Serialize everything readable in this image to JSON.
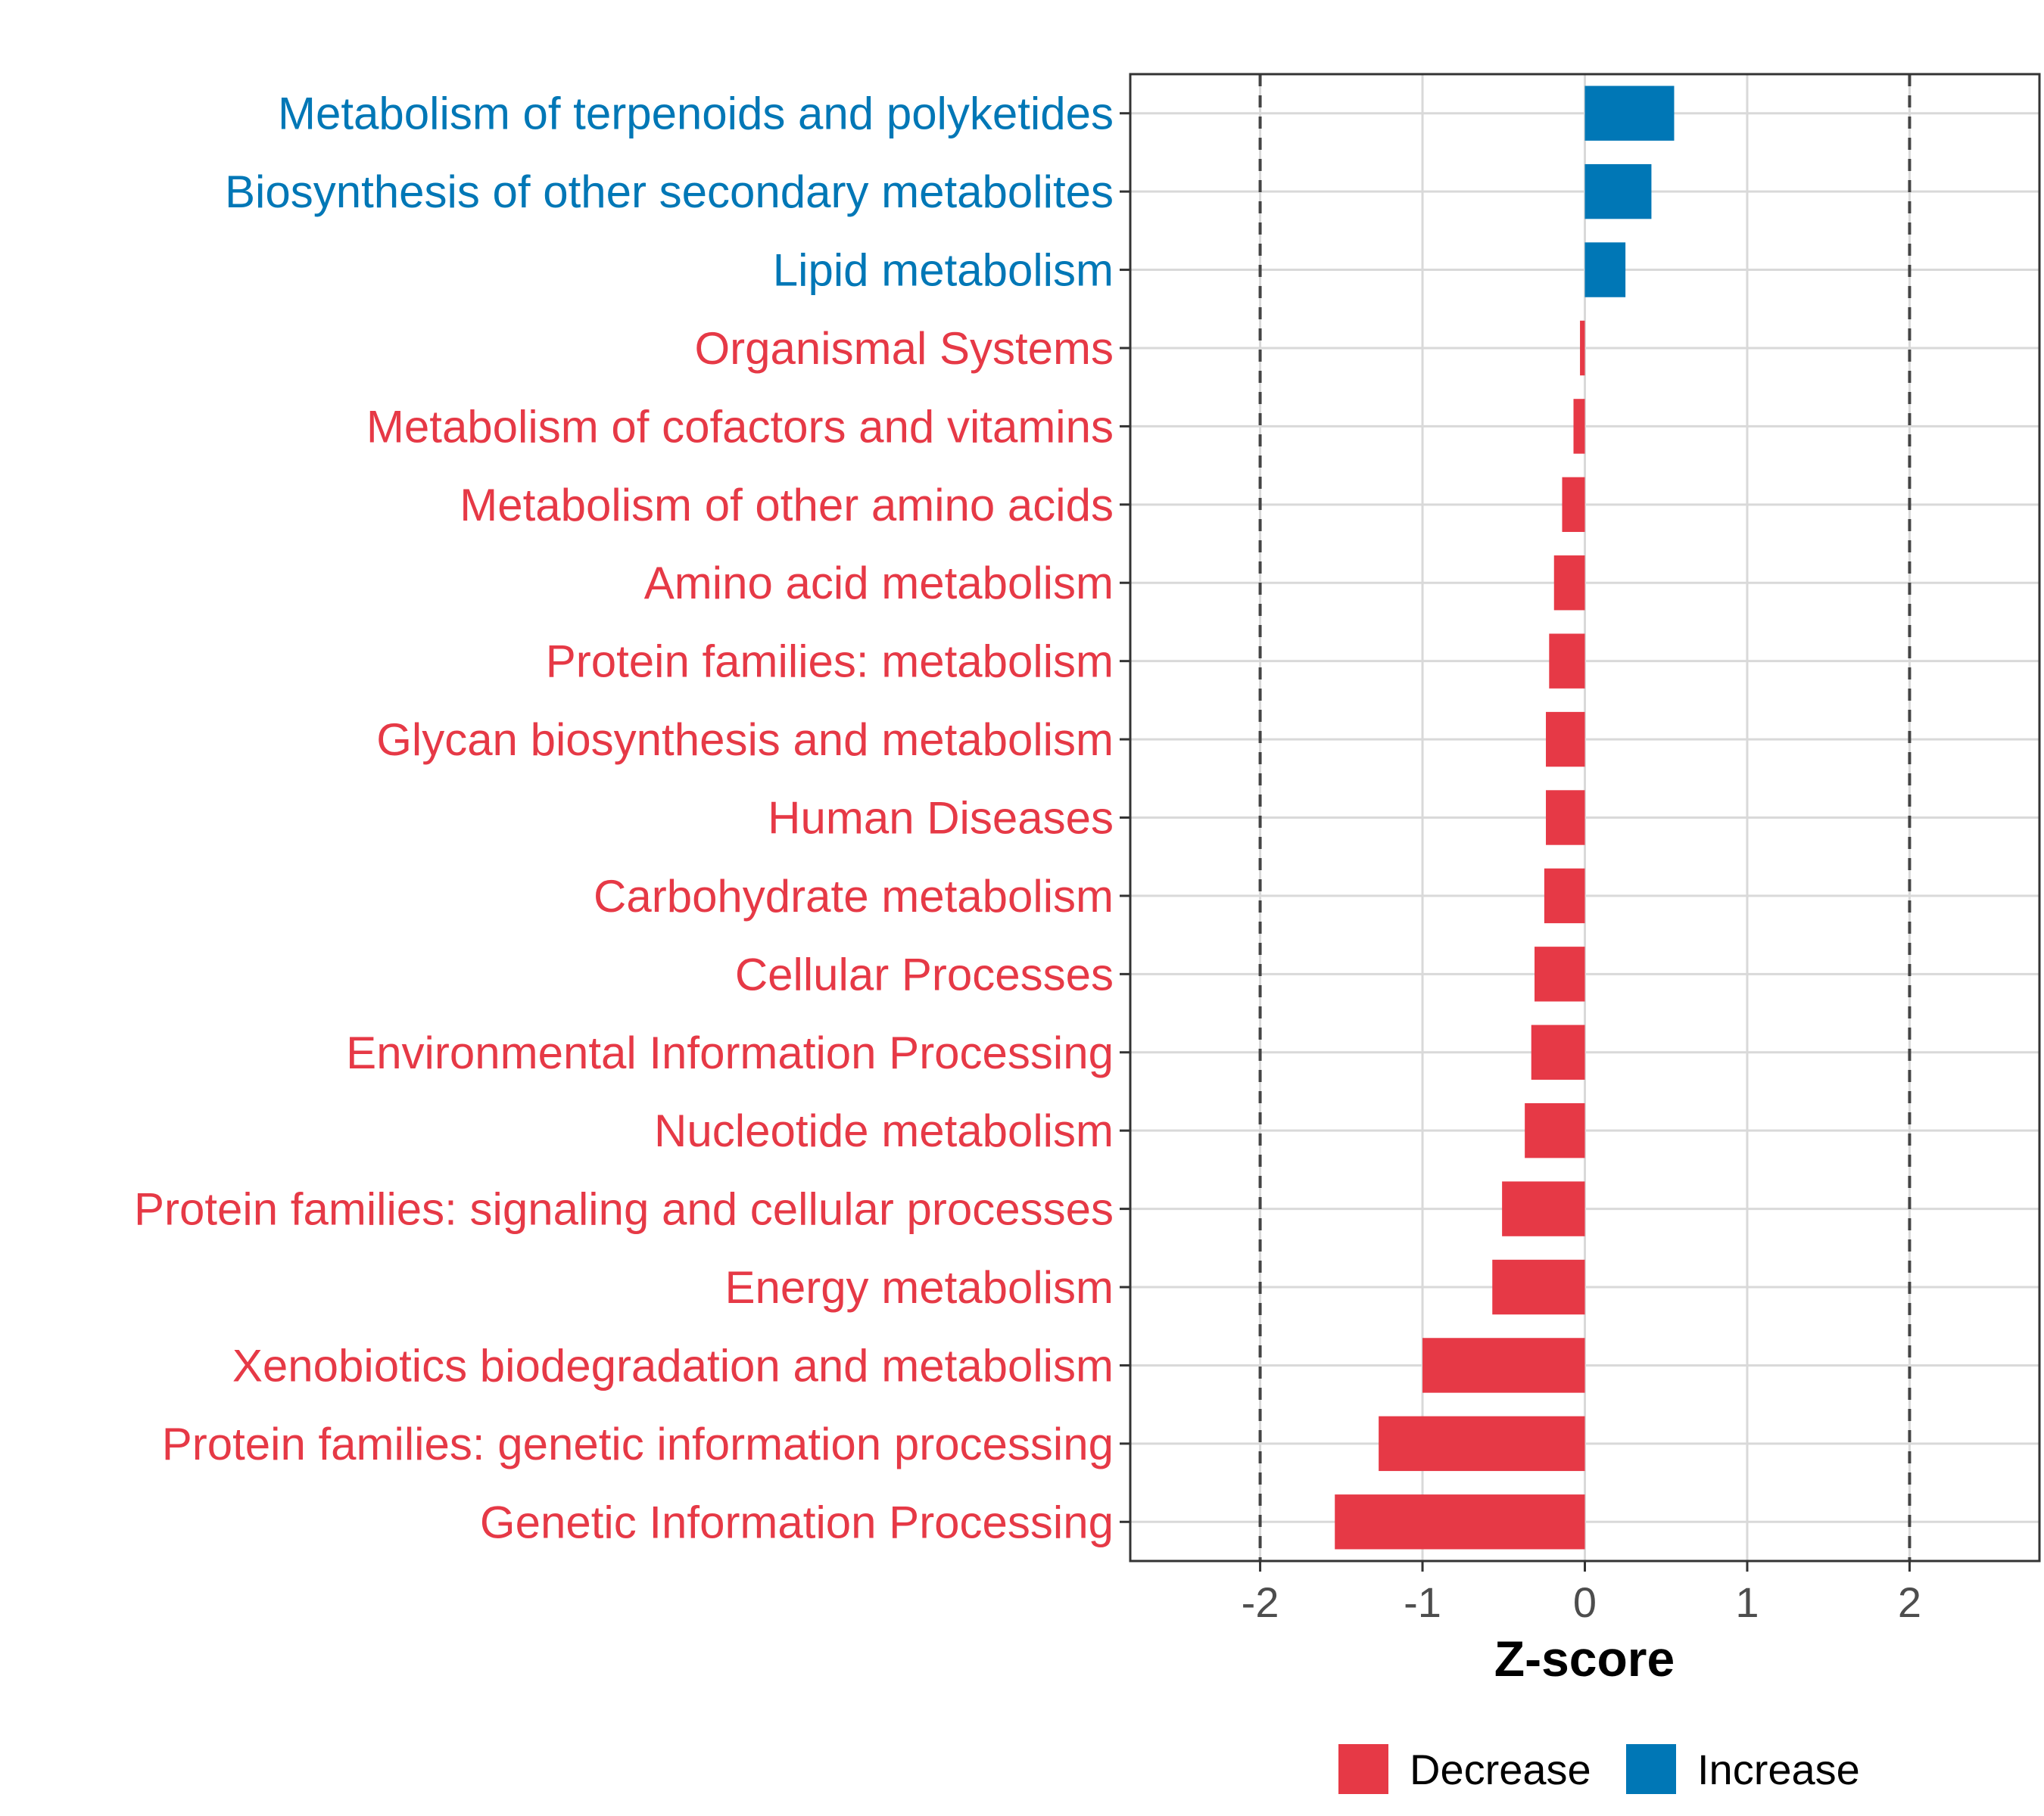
{
  "colors": {
    "decrease": "#e63946",
    "increase": "#0077b6",
    "grid": "#d9d9d9",
    "panel_border": "#333333",
    "reference_line": "#444444"
  },
  "chart_data": {
    "type": "bar",
    "orientation": "horizontal",
    "categories": [
      "Metabolism of terpenoids and polyketides",
      "Biosynthesis of other secondary metabolites",
      "Lipid metabolism",
      "Organismal Systems",
      "Metabolism of cofactors and vitamins",
      "Metabolism of other amino acids",
      "Amino acid metabolism",
      "Protein families: metabolism",
      "Glycan biosynthesis and metabolism",
      "Human Diseases",
      "Carbohydrate metabolism",
      "Cellular Processes",
      "Environmental Information Processing",
      "Nucleotide metabolism",
      "Protein families: signaling and cellular processes",
      "Energy metabolism",
      "Xenobiotics biodegradation and metabolism",
      "Protein families: genetic information processing",
      "Genetic Information Processing"
    ],
    "values": [
      0.55,
      0.41,
      0.25,
      -0.03,
      -0.07,
      -0.14,
      -0.19,
      -0.22,
      -0.24,
      -0.24,
      -0.25,
      -0.31,
      -0.33,
      -0.37,
      -0.51,
      -0.57,
      -1.0,
      -1.27,
      -1.54
    ],
    "xlabel": "Z-score",
    "ylabel": "",
    "xlim": [
      -2.8,
      2.8
    ],
    "xticks": [
      -2,
      -1,
      0,
      1,
      2
    ],
    "xtick_labels": [
      "-2",
      "-1",
      "0",
      "1",
      "2"
    ],
    "reference_lines": [
      -2,
      2
    ],
    "grid": true,
    "legend": {
      "position": "bottom",
      "entries": [
        {
          "name": "Decrease",
          "color": "#e63946"
        },
        {
          "name": "Increase",
          "color": "#0077b6"
        }
      ]
    }
  }
}
